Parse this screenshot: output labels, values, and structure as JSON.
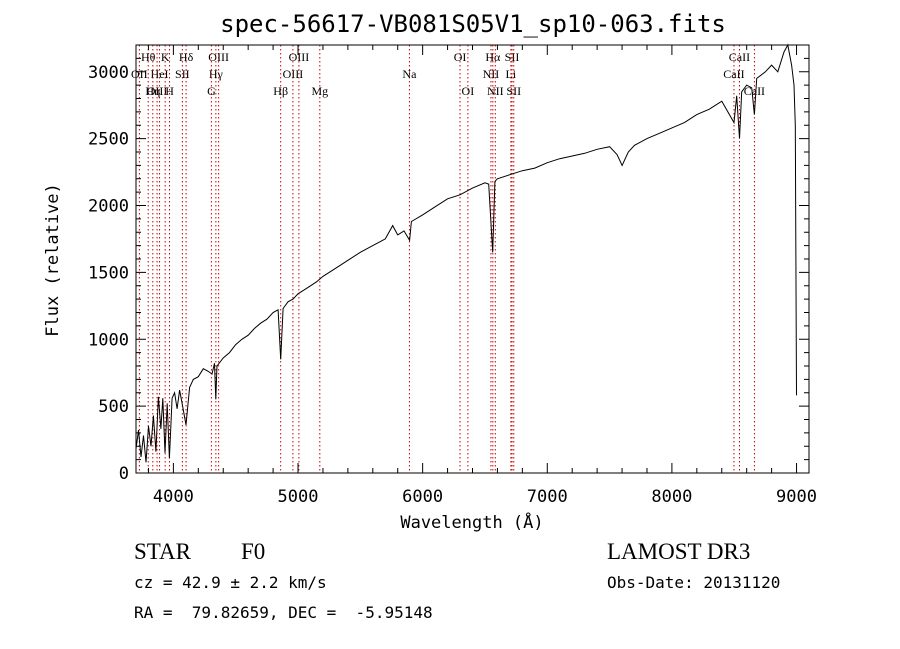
{
  "chart_data": {
    "type": "line",
    "title": "spec-56617-VB081S05V1_sp10-063.fits",
    "xlabel": "Wavelength (Å)",
    "ylabel": "Flux (relative)",
    "xlim": [
      3700,
      9100
    ],
    "ylim": [
      0,
      3200
    ],
    "x_ticks": [
      4000,
      5000,
      6000,
      7000,
      8000,
      9000
    ],
    "y_ticks": [
      0,
      500,
      1000,
      1500,
      2000,
      2500,
      3000
    ],
    "grid": false,
    "series": [
      {
        "name": "spectrum",
        "color": "#000000",
        "points": [
          [
            3700,
            180
          ],
          [
            3720,
            320
          ],
          [
            3740,
            120
          ],
          [
            3760,
            280
          ],
          [
            3780,
            80
          ],
          [
            3800,
            350
          ],
          [
            3820,
            200
          ],
          [
            3840,
            430
          ],
          [
            3860,
            160
          ],
          [
            3880,
            570
          ],
          [
            3900,
            330
          ],
          [
            3915,
            560
          ],
          [
            3933,
            150
          ],
          [
            3950,
            520
          ],
          [
            3968,
            110
          ],
          [
            3990,
            560
          ],
          [
            4010,
            600
          ],
          [
            4030,
            480
          ],
          [
            4050,
            620
          ],
          [
            4070,
            520
          ],
          [
            4101,
            360
          ],
          [
            4130,
            640
          ],
          [
            4160,
            700
          ],
          [
            4200,
            720
          ],
          [
            4240,
            780
          ],
          [
            4280,
            760
          ],
          [
            4310,
            740
          ],
          [
            4330,
            820
          ],
          [
            4340,
            550
          ],
          [
            4350,
            800
          ],
          [
            4400,
            860
          ],
          [
            4450,
            900
          ],
          [
            4500,
            960
          ],
          [
            4550,
            1000
          ],
          [
            4600,
            1030
          ],
          [
            4650,
            1080
          ],
          [
            4700,
            1120
          ],
          [
            4750,
            1150
          ],
          [
            4800,
            1200
          ],
          [
            4840,
            1220
          ],
          [
            4861,
            850
          ],
          [
            4880,
            1230
          ],
          [
            4920,
            1280
          ],
          [
            4960,
            1300
          ],
          [
            5000,
            1340
          ],
          [
            5050,
            1370
          ],
          [
            5100,
            1400
          ],
          [
            5150,
            1430
          ],
          [
            5200,
            1470
          ],
          [
            5300,
            1530
          ],
          [
            5400,
            1590
          ],
          [
            5500,
            1650
          ],
          [
            5600,
            1700
          ],
          [
            5700,
            1750
          ],
          [
            5760,
            1850
          ],
          [
            5800,
            1780
          ],
          [
            5850,
            1810
          ],
          [
            5895,
            1740
          ],
          [
            5910,
            1880
          ],
          [
            6000,
            1930
          ],
          [
            6100,
            1990
          ],
          [
            6200,
            2050
          ],
          [
            6300,
            2080
          ],
          [
            6400,
            2130
          ],
          [
            6500,
            2170
          ],
          [
            6530,
            2160
          ],
          [
            6562,
            1650
          ],
          [
            6580,
            2180
          ],
          [
            6600,
            2200
          ],
          [
            6700,
            2230
          ],
          [
            6800,
            2260
          ],
          [
            6900,
            2280
          ],
          [
            7000,
            2320
          ],
          [
            7100,
            2350
          ],
          [
            7200,
            2370
          ],
          [
            7300,
            2390
          ],
          [
            7400,
            2420
          ],
          [
            7500,
            2440
          ],
          [
            7560,
            2380
          ],
          [
            7600,
            2300
          ],
          [
            7650,
            2400
          ],
          [
            7700,
            2450
          ],
          [
            7800,
            2500
          ],
          [
            7900,
            2540
          ],
          [
            8000,
            2580
          ],
          [
            8100,
            2620
          ],
          [
            8200,
            2680
          ],
          [
            8300,
            2720
          ],
          [
            8400,
            2780
          ],
          [
            8498,
            2620
          ],
          [
            8520,
            2820
          ],
          [
            8542,
            2500
          ],
          [
            8560,
            2850
          ],
          [
            8600,
            2900
          ],
          [
            8640,
            2880
          ],
          [
            8662,
            2680
          ],
          [
            8680,
            2950
          ],
          [
            8750,
            3000
          ],
          [
            8800,
            3050
          ],
          [
            8850,
            3000
          ],
          [
            8900,
            3150
          ],
          [
            8930,
            3200
          ],
          [
            8960,
            3050
          ],
          [
            8980,
            2900
          ],
          [
            8990,
            2600
          ],
          [
            9000,
            580
          ]
        ]
      }
    ],
    "emission_lines": [
      {
        "label": "Hθ",
        "wavelength": 3798,
        "row": 1
      },
      {
        "label": "OII",
        "wavelength": 3727,
        "row": 2
      },
      {
        "label": "OIII",
        "wavelength": 3869,
        "row": 3
      },
      {
        "label": "HeI",
        "wavelength": 3889,
        "row": 2
      },
      {
        "label": "K",
        "wavelength": 3934,
        "row": 1
      },
      {
        "label": "SII",
        "wavelength": 4072,
        "row": 2
      },
      {
        "label": "Hη",
        "wavelength": 3835,
        "row": 3
      },
      {
        "label": "H",
        "wavelength": 3969,
        "row": 3
      },
      {
        "label": "Hδ",
        "wavelength": 4102,
        "row": 1
      },
      {
        "label": "OIII",
        "wavelength": 4363,
        "row": 1
      },
      {
        "label": "Hγ",
        "wavelength": 4341,
        "row": 2
      },
      {
        "label": "G",
        "wavelength": 4305,
        "row": 3
      },
      {
        "label": "Hβ",
        "wavelength": 4861,
        "row": 3
      },
      {
        "label": "OIII",
        "wavelength": 5007,
        "row": 1
      },
      {
        "label": "OIII",
        "wavelength": 4959,
        "row": 2
      },
      {
        "label": "Mg",
        "wavelength": 5175,
        "row": 3
      },
      {
        "label": "Na",
        "wavelength": 5894,
        "row": 2
      },
      {
        "label": "OI",
        "wavelength": 6300,
        "row": 1
      },
      {
        "label": "OI",
        "wavelength": 6363,
        "row": 3
      },
      {
        "label": "Hα",
        "wavelength": 6563,
        "row": 1
      },
      {
        "label": "NII",
        "wavelength": 6548,
        "row": 2
      },
      {
        "label": "NII",
        "wavelength": 6583,
        "row": 3
      },
      {
        "label": "SII",
        "wavelength": 6717,
        "row": 1
      },
      {
        "label": "Li",
        "wavelength": 6708,
        "row": 2
      },
      {
        "label": "SII",
        "wavelength": 6731,
        "row": 3
      },
      {
        "label": "CaII",
        "wavelength": 8542,
        "row": 1
      },
      {
        "label": "CaII",
        "wavelength": 8498,
        "row": 2
      },
      {
        "label": "CaII",
        "wavelength": 8662,
        "row": 3
      }
    ],
    "emission_line_color": "#cc0000"
  },
  "info": {
    "object_class": "STAR",
    "subclass": "F0",
    "survey": "LAMOST DR3",
    "redshift_text": "cz = 42.9 ± 2.2 km/s",
    "obs_date": "Obs-Date: 20131120",
    "coords": "RA =  79.82659, DEC =  -5.95148"
  }
}
